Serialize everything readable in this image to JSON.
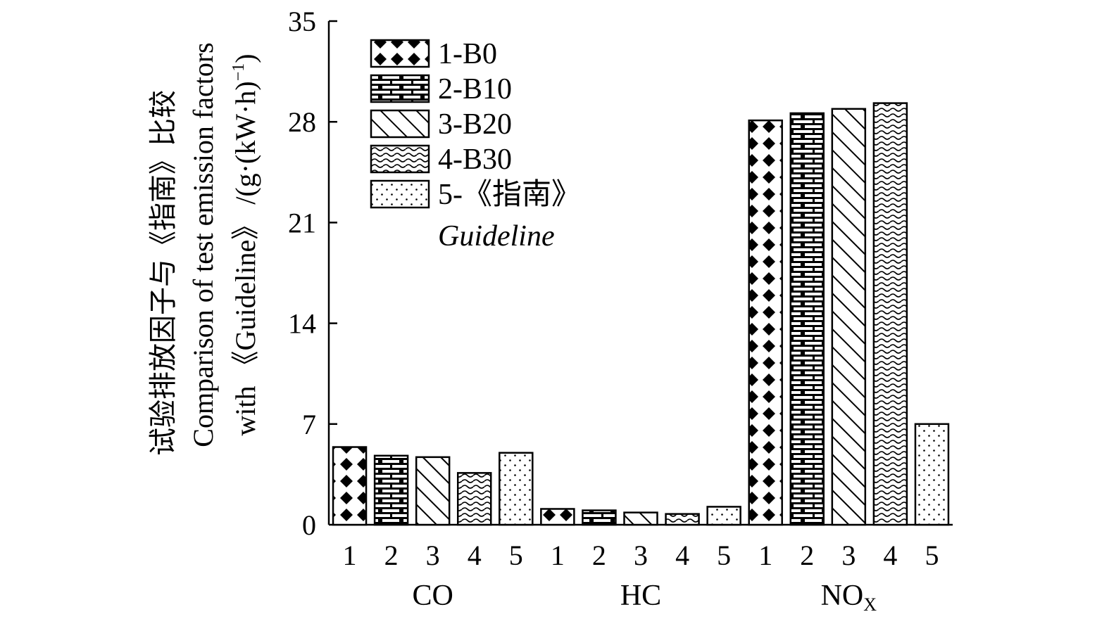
{
  "chart_data": {
    "type": "bar",
    "title": "",
    "ylabel_lines": [
      "试验排放因子与《指南》比较",
      "Comparison of test emission factors",
      "with 《Guideline》 /(g·(kW·h)"
    ],
    "ylabel_superscript": "−1",
    "ylabel_close": ")",
    "ylim": [
      0,
      35
    ],
    "yticks": [
      0,
      7,
      14,
      21,
      28,
      35
    ],
    "ytick_labels": [
      "0",
      "7",
      "14",
      "21",
      "28",
      "35"
    ],
    "groups": [
      {
        "name": "CO",
        "sub": ""
      },
      {
        "name": "HC",
        "sub": ""
      },
      {
        "name": "NO",
        "sub": "X"
      }
    ],
    "bar_labels": [
      "1",
      "2",
      "3",
      "4",
      "5"
    ],
    "series": [
      {
        "name": "1-B0",
        "pattern": "diamond",
        "values": [
          5.4,
          1.1,
          28.1
        ]
      },
      {
        "name": "2-B10",
        "pattern": "brick",
        "values": [
          4.8,
          1.0,
          28.6
        ]
      },
      {
        "name": "3-B20",
        "pattern": "diagonal",
        "values": [
          4.7,
          0.85,
          28.9
        ]
      },
      {
        "name": "4-B30",
        "pattern": "wave",
        "values": [
          3.6,
          0.75,
          29.3
        ]
      },
      {
        "name": "5-《指南》",
        "name_extra": "Guideline",
        "pattern": "dots",
        "values": [
          5.0,
          1.25,
          7.0
        ]
      }
    ],
    "legend_position": "top-left",
    "grid": false
  }
}
